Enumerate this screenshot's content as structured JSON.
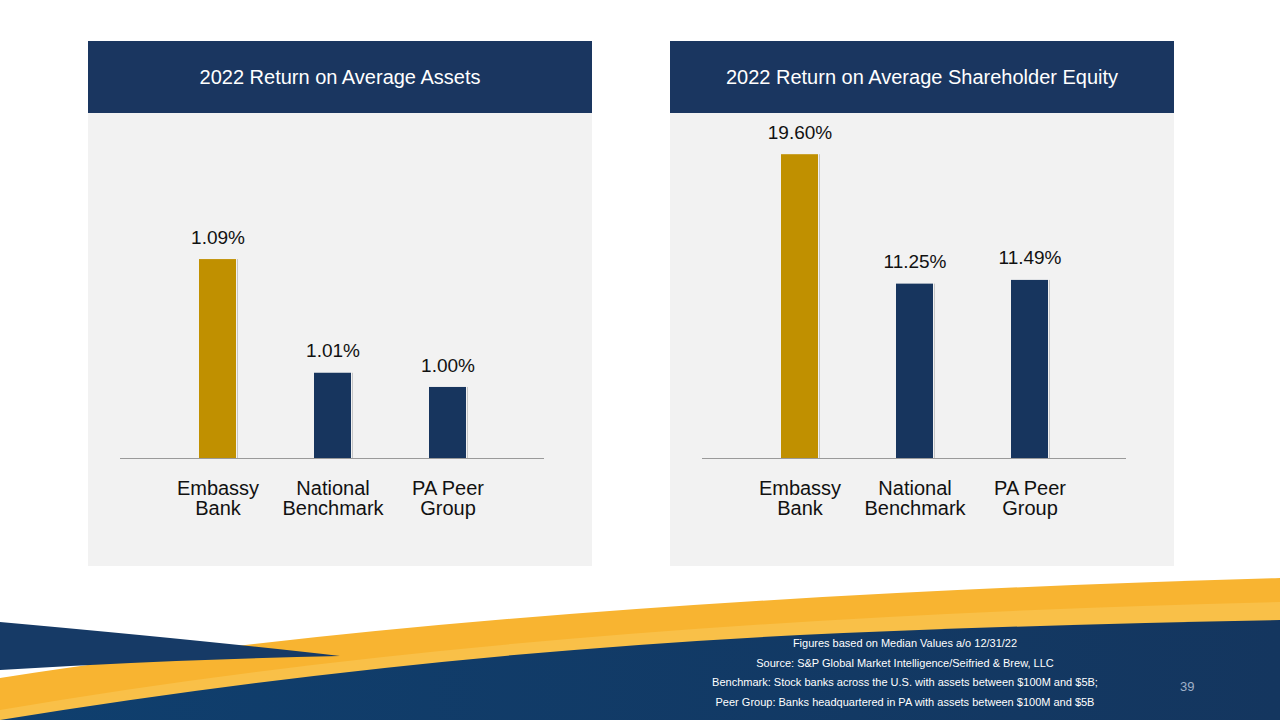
{
  "chart_data": [
    {
      "type": "bar",
      "title": "2022 Return on Average Assets",
      "categories": [
        "Embassy Bank",
        "National Benchmark",
        "PA Peer Group"
      ],
      "values": [
        1.09,
        1.01,
        1.0
      ],
      "value_labels": [
        "1.09%",
        "1.01%",
        "1.00%"
      ],
      "colors": [
        "#c09000",
        "#17355e",
        "#17355e"
      ],
      "ylim": [
        0.95,
        1.19
      ],
      "data_labels": true,
      "tick_labels": "x"
    },
    {
      "type": "bar",
      "title": "2022 Return on Average Shareholder Equity",
      "categories": [
        "Embassy Bank",
        "National Benchmark",
        "PA Peer Group"
      ],
      "values": [
        19.6,
        11.25,
        11.49
      ],
      "value_labels": [
        "19.60%",
        "11.25%",
        "11.49%"
      ],
      "colors": [
        "#c09000",
        "#17355e",
        "#17355e"
      ],
      "ylim": [
        0,
        22
      ],
      "data_labels": true,
      "tick_labels": "x"
    }
  ],
  "notes": [
    "Figures based on Median Values a/o 12/31/22",
    "Source: S&P Global Market Intelligence/Seifried & Brew, LLC",
    "Benchmark: Stock banks across the U.S. with assets between $100M and $5B;",
    "Peer Group: Banks headquartered in PA with assets between $100M and $5B"
  ],
  "page_number": "39"
}
